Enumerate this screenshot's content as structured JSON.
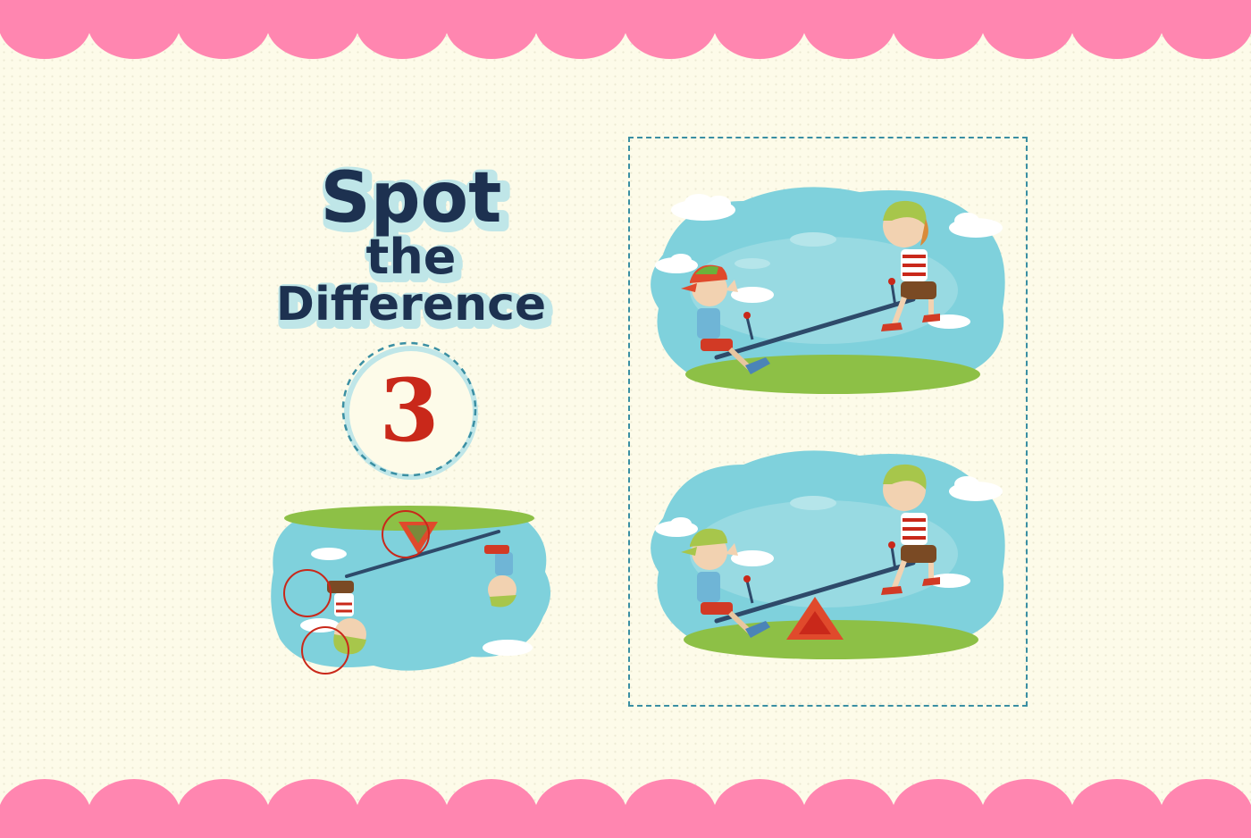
{
  "title": {
    "line1": "Spot",
    "line2": "the",
    "line3": "Difference"
  },
  "puzzle": {
    "number": "3"
  },
  "colors": {
    "background": "#fdfbe9",
    "scallop": "#ff86b0",
    "title_dark": "#1d3150",
    "title_light": "#bfe6e8",
    "number_red": "#c9281a",
    "frame_dashed": "#3a8fa3",
    "sky": "#7fd1dc",
    "grass": "#8dc046",
    "answer_circle": "#c9281a"
  },
  "icons": {
    "warning_triangle": "warning-triangle-icon",
    "cap": "cap-icon",
    "cloud": "cloud-icon"
  }
}
